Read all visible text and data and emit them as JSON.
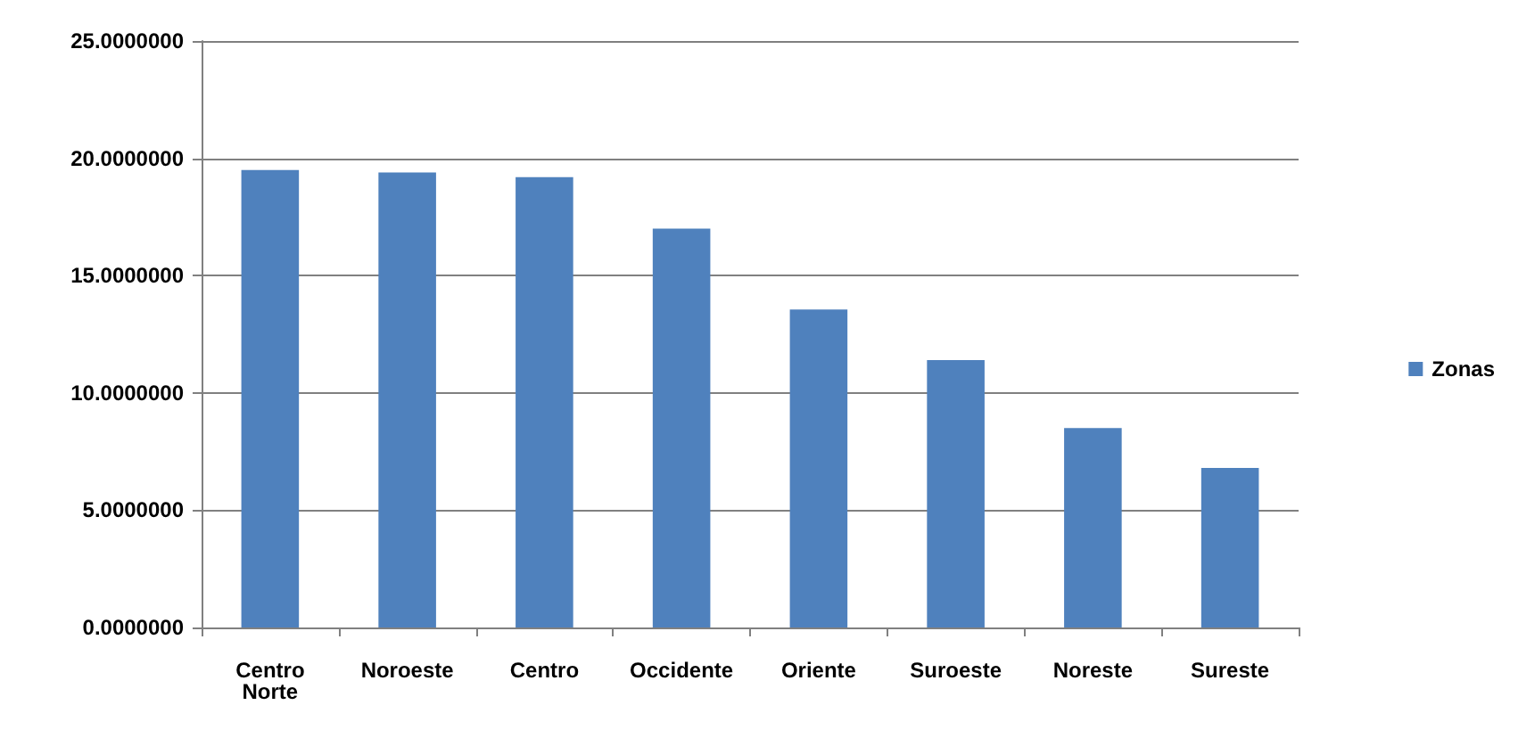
{
  "chart_data": {
    "type": "bar",
    "categories": [
      "Centro\nNorte",
      "Noroeste",
      "Centro",
      "Occidente",
      "Oriente",
      "Suroeste",
      "Noreste",
      "Sureste"
    ],
    "series": [
      {
        "name": "Zonas",
        "color": "#4f81bd",
        "values": [
          19.5,
          19.4,
          19.2,
          17.0,
          13.55,
          11.4,
          8.5,
          6.8
        ]
      }
    ],
    "ylim": [
      0,
      25
    ],
    "yticks": [
      {
        "value": 0,
        "label": "0.0000000"
      },
      {
        "value": 5,
        "label": "5.0000000"
      },
      {
        "value": 10,
        "label": "10.0000000"
      },
      {
        "value": 15,
        "label": "15.0000000"
      },
      {
        "value": 20,
        "label": "20.0000000"
      },
      {
        "value": 25,
        "label": "25.0000000"
      }
    ],
    "grid": "y",
    "legend": "right"
  }
}
